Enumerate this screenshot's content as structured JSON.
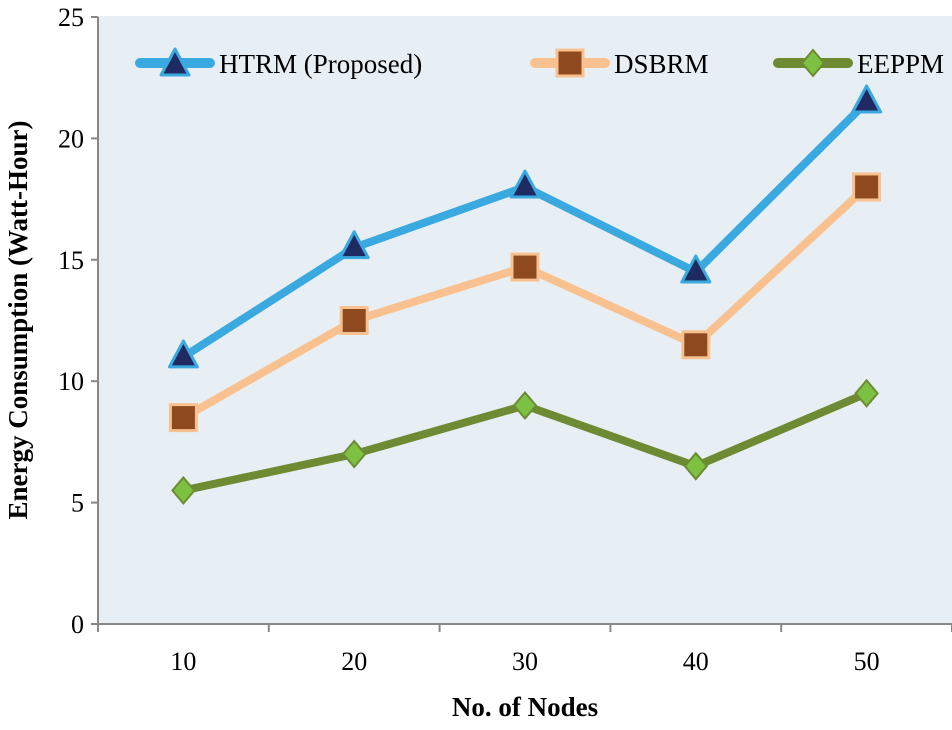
{
  "chart_data": {
    "type": "line",
    "title": "",
    "xlabel": "No. of Nodes",
    "ylabel": "Energy Consumption (Watt-Hour)",
    "categories": [
      "10",
      "20",
      "30",
      "40",
      "50"
    ],
    "ylim": [
      0,
      25
    ],
    "yticks": [
      "0",
      "5",
      "10",
      "15",
      "20",
      "25"
    ],
    "grid": false,
    "legend": "top",
    "background": "#e8eff4",
    "series": [
      {
        "name": "HTRM (Proposed)",
        "values": [
          11,
          15.5,
          18,
          14.5,
          21.5
        ],
        "line_color": "#3aa9e0",
        "marker": "triangle",
        "marker_color": "#1f2a63"
      },
      {
        "name": "DSBRM",
        "values": [
          8.5,
          12.5,
          14.7,
          11.5,
          18
        ],
        "line_color": "#f9c18f",
        "marker": "square",
        "marker_color": "#8e4a1e"
      },
      {
        "name": "EEPPM",
        "values": [
          5.5,
          7,
          9,
          6.5,
          9.5
        ],
        "line_color": "#6e8b34",
        "marker": "diamond",
        "marker_color": "#7cc142"
      }
    ]
  }
}
